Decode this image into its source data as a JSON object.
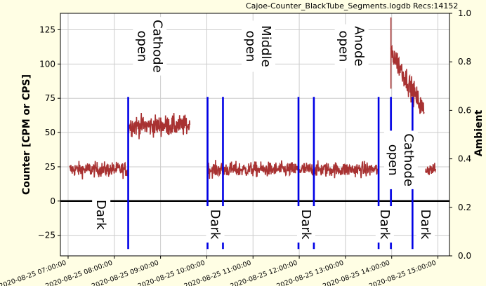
{
  "header": {
    "filename": "Cajoe-Counter_BlackTube_Segments.logdb",
    "recs": "Recs:14152"
  },
  "colors": {
    "background": "#fffee4",
    "plot_bg": "#ffffff",
    "series": "#a83232",
    "markers": "#0000e6",
    "zero_line": "#000000",
    "grid": "#cccccc"
  },
  "chart_data": {
    "type": "line",
    "title": "",
    "xlabel": "",
    "ylabel": "Counter  [CPM or CPS]",
    "y2label": "Ambient",
    "xlim": [
      "2020-08-25 06:50:00",
      "2020-08-25 15:15:00"
    ],
    "ylim": [
      -40,
      137
    ],
    "y2lim": [
      0.0,
      1.0
    ],
    "yticks": [
      -25,
      0,
      25,
      50,
      75,
      100,
      125
    ],
    "y2ticks": [
      "0.0",
      "0.2",
      "0.4",
      "0.6",
      "0.8",
      "1.0"
    ],
    "xticks": [
      "2020-08-25 07:00:00",
      "2020-08-25 08:00:00",
      "2020-08-25 09:00:00",
      "2020-08-25 10:00:00",
      "2020-08-25 11:00:00",
      "2020-08-25 12:00:00",
      "2020-08-25 13:00:00",
      "2020-08-25 14:00:00",
      "2020-08-25 15:00:00"
    ],
    "grid": true,
    "series": [
      {
        "style": "noisy-line",
        "segments": [
          {
            "start": "2020-08-25 07:02:00",
            "end": "2020-08-25 08:18:00",
            "mean": 23,
            "noise": 5
          },
          {
            "start": "2020-08-25 08:18:00",
            "end": "2020-08-25 09:38:00",
            "mean": 55,
            "noise": 7
          },
          {
            "start": "2020-08-25 10:01:00",
            "end": "2020-08-25 13:43:00",
            "mean": 23,
            "noise": 5
          },
          {
            "start": "2020-08-25 13:59:00",
            "end": "2020-08-25 14:42:00",
            "mean": 90,
            "noise": 8,
            "start_value": 110,
            "end_value": 65
          },
          {
            "start": "2020-08-25 14:44:00",
            "end": "2020-08-25 14:57:00",
            "mean": 23,
            "noise": 4
          }
        ]
      }
    ],
    "vlines": [
      {
        "x": "2020-08-25 08:18:00",
        "y0": -35,
        "y1": 76
      },
      {
        "x": "2020-08-25 10:01:00",
        "y0": -35,
        "y1": 76
      },
      {
        "x": "2020-08-25 10:21:00",
        "y0": -35,
        "y1": 76
      },
      {
        "x": "2020-08-25 11:59:00",
        "y0": -35,
        "y1": 76
      },
      {
        "x": "2020-08-25 12:19:00",
        "y0": -35,
        "y1": 76
      },
      {
        "x": "2020-08-25 13:43:00",
        "y0": -35,
        "y1": 76
      },
      {
        "x": "2020-08-25 13:59:00",
        "y0": -35,
        "y1": 76
      },
      {
        "x": "2020-08-25 14:27:00",
        "y0": -35,
        "y1": 76
      }
    ],
    "annotations": [
      {
        "text": "Cathode\nopen",
        "x": "2020-08-25 08:46:00",
        "y": 113
      },
      {
        "text": "Middle\nopen",
        "x": "2020-08-25 11:07:00",
        "y": 113
      },
      {
        "text": "Anode\nopen",
        "x": "2020-08-25 13:08:00",
        "y": 113
      },
      {
        "text": "Cathode\nopen",
        "x": "2020-08-25 14:12:00",
        "y": 30
      },
      {
        "text": "Dark",
        "x": "2020-08-25 07:43:00",
        "y": -10
      },
      {
        "text": "Dark",
        "x": "2020-08-25 10:11:00",
        "y": -17
      },
      {
        "text": "Dark",
        "x": "2020-08-25 12:09:00",
        "y": -17
      },
      {
        "text": "Dark",
        "x": "2020-08-25 13:51:00",
        "y": -17
      },
      {
        "text": "Dark",
        "x": "2020-08-25 14:44:00",
        "y": -17
      }
    ]
  }
}
